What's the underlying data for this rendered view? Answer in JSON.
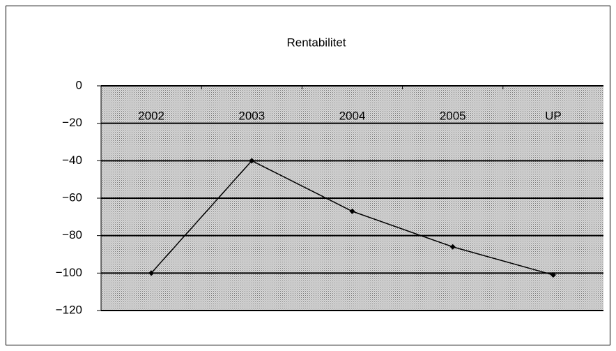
{
  "chart_data": {
    "type": "line",
    "title": "Rentabilitet",
    "categories": [
      "2002",
      "2003",
      "2004",
      "2005",
      "UP"
    ],
    "values": [
      -100,
      -40,
      -67,
      -86,
      -101
    ],
    "color": "#000000",
    "ylim": [
      -120,
      0
    ],
    "yticks": [
      {
        "value": -120,
        "label": "−120"
      },
      {
        "value": -100,
        "label": "−100"
      },
      {
        "value": -80,
        "label": "−80"
      },
      {
        "value": -60,
        "label": "−60"
      },
      {
        "value": -40,
        "label": "−40"
      },
      {
        "value": -20,
        "label": "−20"
      },
      0
    ],
    "grid": true
  }
}
